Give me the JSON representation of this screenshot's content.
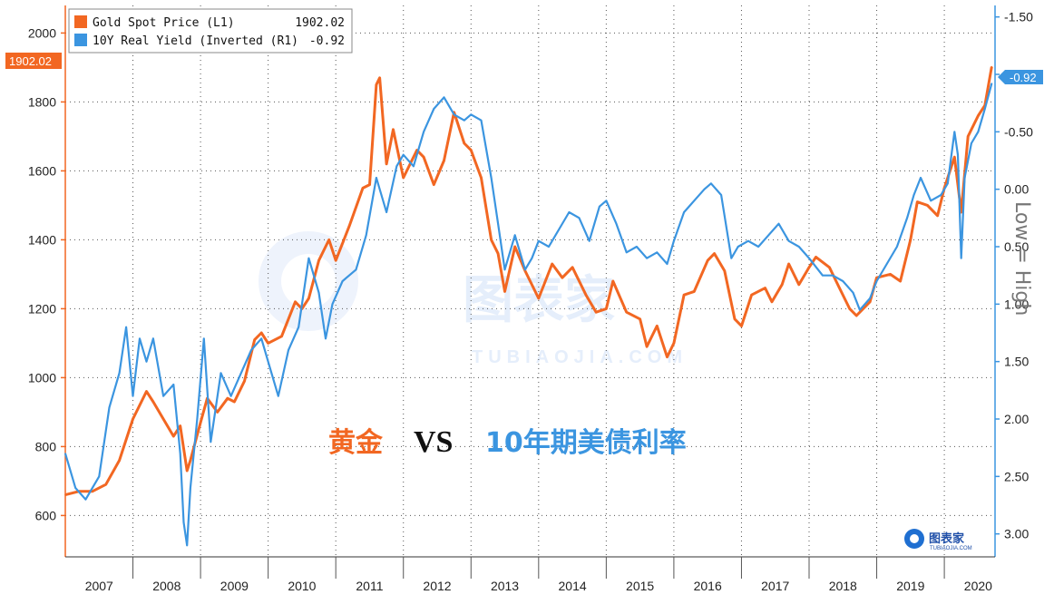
{
  "chart_data": {
    "type": "line",
    "title": "",
    "overlay_title": {
      "left": "黄金",
      "middle": "VS",
      "right": "10年期美债利率"
    },
    "left_axis": {
      "ylim": [
        480,
        2080
      ],
      "ticks": [
        600,
        800,
        1000,
        1200,
        1400,
        1600,
        1800,
        2000
      ]
    },
    "right_axis": {
      "label": "Low = High",
      "inverted": true,
      "ylim": [
        3.2,
        -1.6
      ],
      "ticks": [
        "-1.50",
        "-1.00",
        "-0.50",
        "0.00",
        "0.50",
        "1.00",
        "1.50",
        "2.00",
        "2.50",
        "3.00"
      ],
      "tick_values": [
        -1.5,
        -1.0,
        -0.5,
        0.0,
        0.5,
        1.0,
        1.5,
        2.0,
        2.5,
        3.0
      ]
    },
    "x_axis": {
      "range": [
        2007.0,
        2020.75
      ],
      "year_labels": [
        "2007",
        "2008",
        "2009",
        "2010",
        "2011",
        "2012",
        "2013",
        "2014",
        "2015",
        "2016",
        "2017",
        "2018",
        "2019",
        "2020"
      ]
    },
    "grid": true,
    "legend_position": "top-left",
    "series": [
      {
        "name": "Gold Spot Price (L1)",
        "last_value": "1902.02",
        "axis": "left",
        "color": "#f26722",
        "points": [
          [
            2007.0,
            660
          ],
          [
            2007.2,
            670
          ],
          [
            2007.4,
            670
          ],
          [
            2007.6,
            690
          ],
          [
            2007.8,
            760
          ],
          [
            2008.0,
            880
          ],
          [
            2008.2,
            960
          ],
          [
            2008.3,
            930
          ],
          [
            2008.45,
            880
          ],
          [
            2008.6,
            830
          ],
          [
            2008.7,
            860
          ],
          [
            2008.8,
            730
          ],
          [
            2008.85,
            760
          ],
          [
            2009.0,
            870
          ],
          [
            2009.1,
            940
          ],
          [
            2009.25,
            900
          ],
          [
            2009.4,
            940
          ],
          [
            2009.5,
            930
          ],
          [
            2009.65,
            990
          ],
          [
            2009.8,
            1110
          ],
          [
            2009.9,
            1130
          ],
          [
            2010.0,
            1100
          ],
          [
            2010.2,
            1120
          ],
          [
            2010.4,
            1220
          ],
          [
            2010.5,
            1200
          ],
          [
            2010.6,
            1230
          ],
          [
            2010.75,
            1340
          ],
          [
            2010.9,
            1400
          ],
          [
            2011.0,
            1340
          ],
          [
            2011.2,
            1440
          ],
          [
            2011.4,
            1550
          ],
          [
            2011.5,
            1560
          ],
          [
            2011.6,
            1850
          ],
          [
            2011.65,
            1870
          ],
          [
            2011.75,
            1620
          ],
          [
            2011.85,
            1720
          ],
          [
            2012.0,
            1580
          ],
          [
            2012.2,
            1660
          ],
          [
            2012.3,
            1640
          ],
          [
            2012.45,
            1560
          ],
          [
            2012.6,
            1630
          ],
          [
            2012.75,
            1770
          ],
          [
            2012.9,
            1680
          ],
          [
            2013.0,
            1660
          ],
          [
            2013.15,
            1580
          ],
          [
            2013.3,
            1400
          ],
          [
            2013.4,
            1360
          ],
          [
            2013.5,
            1250
          ],
          [
            2013.65,
            1380
          ],
          [
            2013.8,
            1310
          ],
          [
            2014.0,
            1230
          ],
          [
            2014.2,
            1330
          ],
          [
            2014.35,
            1290
          ],
          [
            2014.5,
            1320
          ],
          [
            2014.7,
            1240
          ],
          [
            2014.85,
            1190
          ],
          [
            2015.0,
            1200
          ],
          [
            2015.1,
            1280
          ],
          [
            2015.3,
            1190
          ],
          [
            2015.5,
            1170
          ],
          [
            2015.6,
            1090
          ],
          [
            2015.75,
            1150
          ],
          [
            2015.9,
            1060
          ],
          [
            2016.0,
            1100
          ],
          [
            2016.15,
            1240
          ],
          [
            2016.3,
            1250
          ],
          [
            2016.5,
            1340
          ],
          [
            2016.6,
            1360
          ],
          [
            2016.75,
            1310
          ],
          [
            2016.9,
            1170
          ],
          [
            2017.0,
            1150
          ],
          [
            2017.15,
            1240
          ],
          [
            2017.35,
            1260
          ],
          [
            2017.45,
            1220
          ],
          [
            2017.6,
            1270
          ],
          [
            2017.7,
            1330
          ],
          [
            2017.85,
            1270
          ],
          [
            2018.0,
            1320
          ],
          [
            2018.1,
            1350
          ],
          [
            2018.3,
            1320
          ],
          [
            2018.45,
            1260
          ],
          [
            2018.6,
            1200
          ],
          [
            2018.7,
            1180
          ],
          [
            2018.9,
            1220
          ],
          [
            2019.0,
            1290
          ],
          [
            2019.2,
            1300
          ],
          [
            2019.35,
            1280
          ],
          [
            2019.5,
            1400
          ],
          [
            2019.6,
            1510
          ],
          [
            2019.75,
            1500
          ],
          [
            2019.9,
            1470
          ],
          [
            2020.0,
            1550
          ],
          [
            2020.15,
            1640
          ],
          [
            2020.2,
            1560
          ],
          [
            2020.25,
            1480
          ],
          [
            2020.35,
            1700
          ],
          [
            2020.5,
            1760
          ],
          [
            2020.6,
            1790
          ],
          [
            2020.7,
            1902.02
          ]
        ]
      },
      {
        "name": "10Y Real Yield (Inverted (R1)",
        "last_value": "-0.92",
        "axis": "right",
        "color": "#3b95e0",
        "points": [
          [
            2007.0,
            2.3
          ],
          [
            2007.15,
            2.6
          ],
          [
            2007.3,
            2.7
          ],
          [
            2007.5,
            2.5
          ],
          [
            2007.65,
            1.9
          ],
          [
            2007.8,
            1.6
          ],
          [
            2007.9,
            1.2
          ],
          [
            2008.0,
            1.8
          ],
          [
            2008.1,
            1.3
          ],
          [
            2008.2,
            1.5
          ],
          [
            2008.3,
            1.3
          ],
          [
            2008.45,
            1.8
          ],
          [
            2008.6,
            1.7
          ],
          [
            2008.7,
            2.3
          ],
          [
            2008.75,
            2.9
          ],
          [
            2008.8,
            3.1
          ],
          [
            2008.85,
            2.6
          ],
          [
            2008.95,
            2.0
          ],
          [
            2009.05,
            1.3
          ],
          [
            2009.15,
            2.2
          ],
          [
            2009.3,
            1.6
          ],
          [
            2009.45,
            1.8
          ],
          [
            2009.6,
            1.6
          ],
          [
            2009.75,
            1.4
          ],
          [
            2009.9,
            1.3
          ],
          [
            2010.0,
            1.5
          ],
          [
            2010.15,
            1.8
          ],
          [
            2010.3,
            1.4
          ],
          [
            2010.45,
            1.2
          ],
          [
            2010.6,
            0.6
          ],
          [
            2010.75,
            0.9
          ],
          [
            2010.85,
            1.3
          ],
          [
            2010.95,
            1.0
          ],
          [
            2011.1,
            0.8
          ],
          [
            2011.3,
            0.7
          ],
          [
            2011.45,
            0.4
          ],
          [
            2011.6,
            -0.1
          ],
          [
            2011.75,
            0.2
          ],
          [
            2011.9,
            -0.2
          ],
          [
            2012.0,
            -0.3
          ],
          [
            2012.15,
            -0.2
          ],
          [
            2012.3,
            -0.5
          ],
          [
            2012.45,
            -0.7
          ],
          [
            2012.6,
            -0.8
          ],
          [
            2012.75,
            -0.65
          ],
          [
            2012.9,
            -0.6
          ],
          [
            2013.0,
            -0.65
          ],
          [
            2013.15,
            -0.6
          ],
          [
            2013.3,
            -0.1
          ],
          [
            2013.4,
            0.3
          ],
          [
            2013.5,
            0.7
          ],
          [
            2013.65,
            0.4
          ],
          [
            2013.8,
            0.7
          ],
          [
            2013.9,
            0.6
          ],
          [
            2014.0,
            0.45
          ],
          [
            2014.15,
            0.5
          ],
          [
            2014.3,
            0.35
          ],
          [
            2014.45,
            0.2
          ],
          [
            2014.6,
            0.25
          ],
          [
            2014.75,
            0.45
          ],
          [
            2014.9,
            0.15
          ],
          [
            2015.0,
            0.1
          ],
          [
            2015.15,
            0.3
          ],
          [
            2015.3,
            0.55
          ],
          [
            2015.45,
            0.5
          ],
          [
            2015.6,
            0.6
          ],
          [
            2015.75,
            0.55
          ],
          [
            2015.9,
            0.65
          ],
          [
            2016.0,
            0.45
          ],
          [
            2016.15,
            0.2
          ],
          [
            2016.3,
            0.1
          ],
          [
            2016.45,
            0.0
          ],
          [
            2016.55,
            -0.05
          ],
          [
            2016.7,
            0.05
          ],
          [
            2016.85,
            0.6
          ],
          [
            2016.95,
            0.5
          ],
          [
            2017.1,
            0.45
          ],
          [
            2017.25,
            0.5
          ],
          [
            2017.4,
            0.4
          ],
          [
            2017.55,
            0.3
          ],
          [
            2017.7,
            0.45
          ],
          [
            2017.85,
            0.5
          ],
          [
            2018.0,
            0.6
          ],
          [
            2018.2,
            0.75
          ],
          [
            2018.35,
            0.75
          ],
          [
            2018.5,
            0.8
          ],
          [
            2018.65,
            0.9
          ],
          [
            2018.75,
            1.05
          ],
          [
            2018.9,
            0.95
          ],
          [
            2019.0,
            0.8
          ],
          [
            2019.15,
            0.65
          ],
          [
            2019.3,
            0.5
          ],
          [
            2019.45,
            0.25
          ],
          [
            2019.55,
            0.05
          ],
          [
            2019.65,
            -0.1
          ],
          [
            2019.8,
            0.1
          ],
          [
            2019.95,
            0.05
          ],
          [
            2020.05,
            -0.05
          ],
          [
            2020.15,
            -0.5
          ],
          [
            2020.2,
            -0.3
          ],
          [
            2020.25,
            0.6
          ],
          [
            2020.3,
            -0.1
          ],
          [
            2020.4,
            -0.4
          ],
          [
            2020.5,
            -0.5
          ],
          [
            2020.6,
            -0.7
          ],
          [
            2020.7,
            -0.92
          ]
        ]
      }
    ]
  },
  "watermark": {
    "text": "图表家",
    "sub": "TUBIAOJIA.COM"
  },
  "logo": {
    "text": "图表家",
    "sub": "TUBIAOJIA.COM"
  },
  "colors": {
    "gold": "#f26722",
    "yield": "#3b95e0",
    "grid": "#555555",
    "axis_right": "#3b95e0"
  }
}
